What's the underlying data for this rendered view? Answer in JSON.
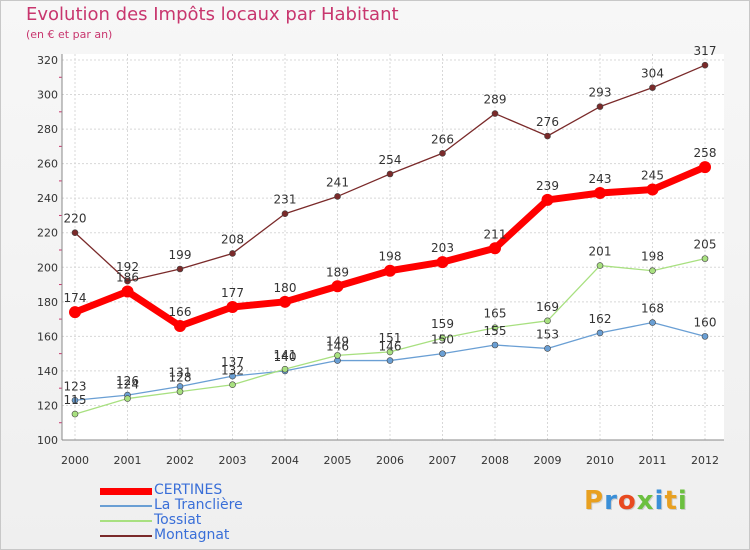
{
  "header": {
    "title": "Evolution des Impôts locaux par Habitant",
    "subtitle": "(en € et par an)"
  },
  "logo": {
    "text": "Proxiti",
    "colors": [
      "#e8a020",
      "#3a8fd8",
      "#e84a20",
      "#6cc040",
      "#3a8fd8",
      "#e8a020",
      "#6cc040"
    ]
  },
  "chart_data": {
    "type": "line",
    "x": [
      "2000",
      "2001",
      "2002",
      "2003",
      "2004",
      "2005",
      "2006",
      "2007",
      "2008",
      "2009",
      "2010",
      "2011",
      "2012"
    ],
    "ylim": [
      100,
      320
    ],
    "yticks": [
      100,
      120,
      140,
      160,
      180,
      200,
      220,
      240,
      260,
      280,
      300,
      320
    ],
    "grid": true,
    "legend_position": "bottom-left",
    "series": [
      {
        "name": "CERTINES",
        "color": "#ff0000",
        "values": [
          174,
          186,
          166,
          177,
          180,
          189,
          198,
          203,
          211,
          239,
          243,
          245,
          258
        ],
        "labels": [
          "174",
          "186",
          "166",
          "177",
          "180",
          "189",
          "198",
          "203",
          "211",
          "239",
          "243",
          "245",
          "258"
        ]
      },
      {
        "name": "La Tranclière",
        "color": "#6a9fd4",
        "values": [
          123,
          126,
          131,
          137,
          140,
          146,
          146,
          150,
          155,
          153,
          162,
          168,
          160
        ],
        "labels": [
          "123",
          "126",
          "131",
          "137",
          "140",
          "146",
          "146",
          "150",
          "155",
          "153",
          "162",
          "168",
          "160"
        ]
      },
      {
        "name": "Tossiat",
        "color": "#a8e080",
        "values": [
          115,
          124,
          128,
          132,
          141,
          149,
          151,
          159,
          165,
          169,
          201,
          198,
          205
        ],
        "labels": [
          "115",
          "124",
          "128",
          "132",
          "141",
          "149",
          "151",
          "159",
          "165",
          "169",
          "201",
          "198",
          "205"
        ]
      },
      {
        "name": "Montagnat",
        "color": "#7a2a2a",
        "values": [
          220,
          192,
          199,
          208,
          231,
          241,
          254,
          266,
          289,
          276,
          293,
          304,
          317
        ],
        "labels": [
          "220",
          "192",
          "199",
          "208",
          "231",
          "241",
          "254",
          "266",
          "289",
          "276",
          "293",
          "304",
          "317"
        ]
      }
    ]
  }
}
